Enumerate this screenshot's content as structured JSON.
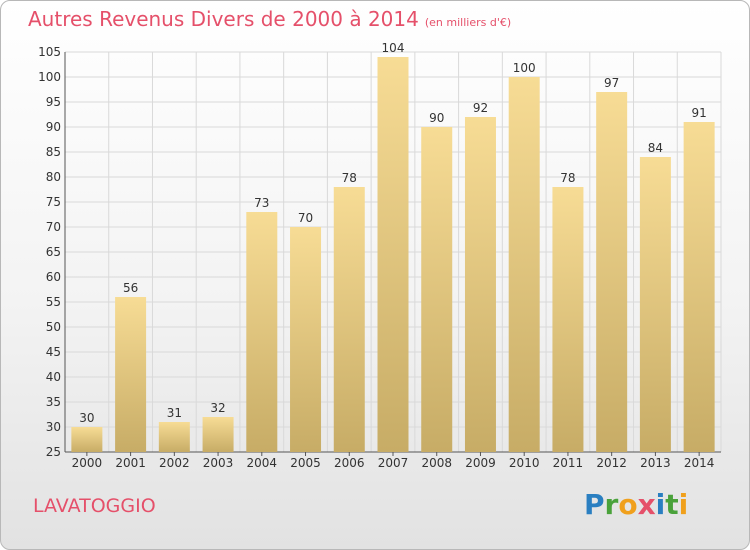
{
  "title": "Autres Revenus Divers de 2000 à 2014",
  "unit": "(en milliers d'€)",
  "commune": "LAVATOGGIO",
  "logo": {
    "p": "P",
    "r": "r",
    "o": "o",
    "x": "x",
    "i": "i",
    "t": "t",
    "i2": "i"
  },
  "colors": {
    "title": "#e5506a",
    "bar_top": "#f7dc95",
    "bar_bottom": "#c7ac66",
    "grid": "#d9d9d9"
  },
  "chart_data": {
    "type": "bar",
    "title": "Autres Revenus Divers de 2000 à 2014",
    "xlabel": "",
    "ylabel": "",
    "categories": [
      "2000",
      "2001",
      "2002",
      "2003",
      "2004",
      "2005",
      "2006",
      "2007",
      "2008",
      "2009",
      "2010",
      "2011",
      "2012",
      "2013",
      "2014"
    ],
    "values": [
      30,
      56,
      31,
      32,
      73,
      70,
      78,
      104,
      90,
      92,
      100,
      78,
      97,
      84,
      91
    ],
    "ylim": [
      25,
      105
    ],
    "yticks": [
      25,
      30,
      35,
      40,
      45,
      50,
      55,
      60,
      65,
      70,
      75,
      80,
      85,
      90,
      95,
      100,
      105
    ],
    "grid": true,
    "legend": "none"
  }
}
